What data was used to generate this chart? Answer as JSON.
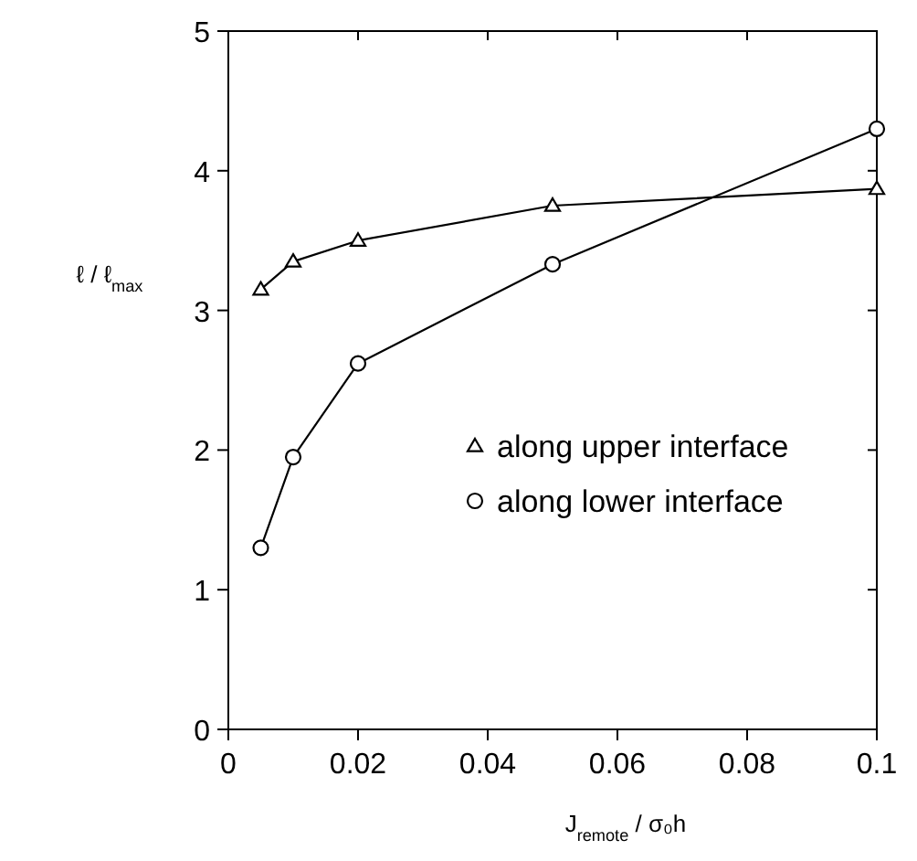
{
  "chart_data": {
    "type": "line",
    "xlabel": "J$_{remote}$ / σ₀h",
    "ylabel": "ℓ / ℓ$_{max}$",
    "xlim": [
      0,
      0.1
    ],
    "ylim": [
      0,
      5
    ],
    "xticks": [
      0,
      0.02,
      0.04,
      0.06,
      0.08,
      0.1
    ],
    "yticks": [
      0,
      1,
      2,
      3,
      4,
      5
    ],
    "legend": "right",
    "grid": false,
    "line_style": "solid",
    "series": [
      {
        "name": "along upper interface",
        "color": "#000000",
        "marker": "triangle",
        "x": [
          0.005,
          0.01,
          0.02,
          0.05,
          0.1
        ],
        "values": [
          3.15,
          3.35,
          3.5,
          3.75,
          3.87
        ]
      },
      {
        "name": "along lower interface",
        "color": "#000000",
        "marker": "circle",
        "x": [
          0.005,
          0.01,
          0.02,
          0.05,
          0.1
        ],
        "values": [
          1.3,
          1.95,
          2.62,
          3.33,
          4.3
        ]
      }
    ]
  }
}
